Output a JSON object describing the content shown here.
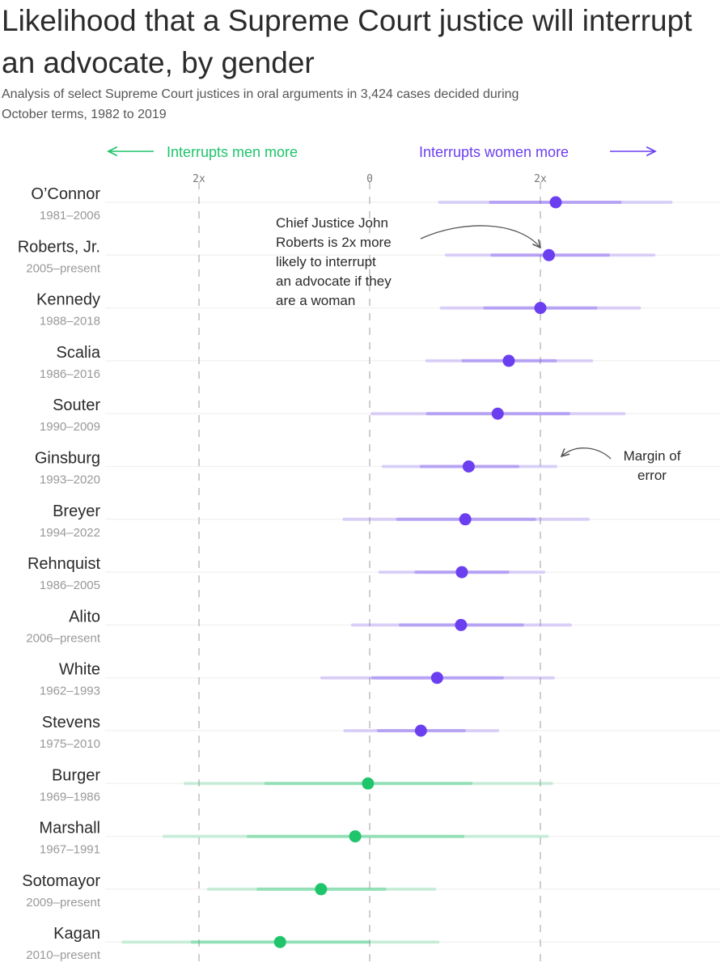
{
  "header": {
    "title": "Likelihood that a Supreme Court justice will interrupt an advocate, by gender",
    "subtitle": "Analysis of select Supreme Court justices in oral arguments in 3,424 cases decided during October terms, 1982 to 2019"
  },
  "colors": {
    "women": "#6b3ff0",
    "men": "#1fc46b",
    "grid": "#bdbdbd",
    "row_line": "#eeeeee"
  },
  "chart_data": {
    "type": "dot-range",
    "title": "Likelihood that a Supreme Court justice will interrupt an advocate, by gender",
    "direction_labels": {
      "left": "Interrupts men more",
      "right": "Interrupts women more"
    },
    "ticks": [
      {
        "value": -2,
        "label": "2x"
      },
      {
        "value": 0,
        "label": "0"
      },
      {
        "value": 2,
        "label": "2x"
      }
    ],
    "xlim": [
      -3.0,
      4.2
    ],
    "series": [
      {
        "name": "O’Connor",
        "years": "1981–2006",
        "value": 2.18,
        "low": 0.82,
        "high": 3.53,
        "group": "women"
      },
      {
        "name": "Roberts, Jr.",
        "years": "2005–present",
        "value": 2.1,
        "low": 0.9,
        "high": 3.33,
        "group": "women"
      },
      {
        "name": "Kennedy",
        "years": "1988–2018",
        "value": 2.0,
        "low": 0.84,
        "high": 3.16,
        "group": "women"
      },
      {
        "name": "Scalia",
        "years": "1986–2016",
        "value": 1.63,
        "low": 0.67,
        "high": 2.6,
        "group": "women"
      },
      {
        "name": "Souter",
        "years": "1990–2009",
        "value": 1.5,
        "low": 0.03,
        "high": 2.98,
        "group": "women"
      },
      {
        "name": "Ginsburg",
        "years": "1993–2020",
        "value": 1.16,
        "low": 0.16,
        "high": 2.18,
        "group": "women"
      },
      {
        "name": "Breyer",
        "years": "1994–2022",
        "value": 1.12,
        "low": -0.3,
        "high": 2.56,
        "group": "women"
      },
      {
        "name": "Rehnquist",
        "years": "1986–2005",
        "value": 1.08,
        "low": 0.12,
        "high": 2.04,
        "group": "women"
      },
      {
        "name": "Alito",
        "years": "2006–present",
        "value": 1.07,
        "low": -0.2,
        "high": 2.35,
        "group": "women"
      },
      {
        "name": "White",
        "years": "1962–1993",
        "value": 0.79,
        "low": -0.56,
        "high": 2.15,
        "group": "women"
      },
      {
        "name": "Stevens",
        "years": "1975–2010",
        "value": 0.6,
        "low": -0.29,
        "high": 1.5,
        "group": "women"
      },
      {
        "name": "Burger",
        "years": "1969–1986",
        "value": -0.02,
        "low": -2.16,
        "high": 2.13,
        "group": "men"
      },
      {
        "name": "Marshall",
        "years": "1967–1991",
        "value": -0.17,
        "low": -2.41,
        "high": 2.08,
        "group": "men"
      },
      {
        "name": "Sotomayor",
        "years": "2009–present",
        "value": -0.57,
        "low": -1.89,
        "high": 0.76,
        "group": "men"
      },
      {
        "name": "Kagan",
        "years": "2010–present",
        "value": -1.05,
        "low": -2.89,
        "high": 0.8,
        "group": "men"
      }
    ],
    "annotations": [
      {
        "id": "roberts-note",
        "lines": [
          "Chief Justice John",
          "Roberts is 2x more",
          "likely to interrupt",
          "an advocate if they",
          "are a woman"
        ]
      },
      {
        "id": "margin-note",
        "lines": [
          "Margin of",
          "error"
        ]
      }
    ]
  }
}
